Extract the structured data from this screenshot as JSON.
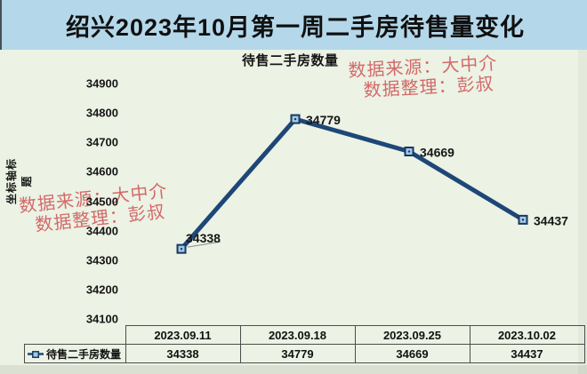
{
  "header": {
    "title": "绍兴2023年10月第一周二手房待售量变化"
  },
  "watermark": {
    "source_line": "数据来源：大中介",
    "editor_line": "数据整理：彭叔"
  },
  "chart_data": {
    "type": "line",
    "title": "待售二手房数量",
    "y_axis_title": "坐标轴标题",
    "categories": [
      "2023.09.11",
      "2023.09.18",
      "2023.09.25",
      "2023.10.02"
    ],
    "series": [
      {
        "name": "待售二手房数量",
        "values": [
          34338,
          34779,
          34669,
          34437
        ]
      }
    ],
    "ylim": [
      34100,
      34900
    ],
    "ytick_interval": 100,
    "yticks": [
      34900,
      34800,
      34700,
      34600,
      34500,
      34400,
      34300,
      34200,
      34100
    ],
    "grid": false,
    "data_labels": true,
    "legend_position": "data-table-row-header",
    "data_table_shown": true
  },
  "colors": {
    "title_band_bg": "#b4d8ea",
    "chart_bg": "#ecf2e4",
    "line": "#1e4778",
    "marker_fill": "#a3c7e8",
    "marker_border": "#17395f",
    "watermark": "#d05f5f",
    "text": "#161616",
    "table_border": "#4d4d4d",
    "label_leader": "#8a8a8a"
  }
}
